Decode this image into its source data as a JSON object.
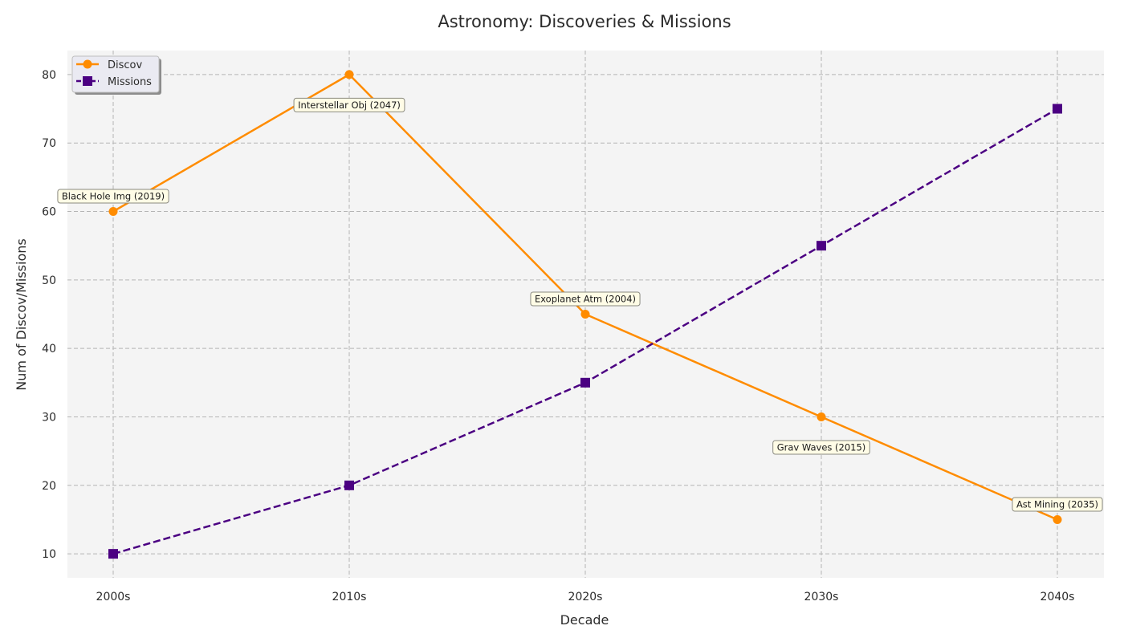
{
  "chart_data": {
    "type": "line",
    "title": "Astronomy: Discoveries & Missions",
    "xlabel": "Decade",
    "ylabel": "Num of Discov/Missions",
    "categories": [
      "2000s",
      "2010s",
      "2020s",
      "2030s",
      "2040s"
    ],
    "yticks": [
      10,
      20,
      30,
      40,
      50,
      60,
      70,
      80
    ],
    "ylim": [
      6.5,
      83.5
    ],
    "grid": true,
    "legend_position": "top-left",
    "series": [
      {
        "name": "Discov",
        "values": [
          60,
          80,
          45,
          30,
          15
        ],
        "color": "#FF8C00",
        "marker": "circle",
        "line_style": "solid"
      },
      {
        "name": "Missions",
        "values": [
          10,
          20,
          35,
          55,
          75
        ],
        "color": "#4B0082",
        "marker": "square",
        "line_style": "dashed"
      }
    ],
    "annotations": [
      {
        "text": "Black Hole Img (2019)",
        "category": "2000s",
        "value": 60,
        "side": "above"
      },
      {
        "text": "Interstellar Obj (2047)",
        "category": "2010s",
        "value": 80,
        "side": "below"
      },
      {
        "text": "Exoplanet Atm (2004)",
        "category": "2020s",
        "value": 45,
        "side": "above"
      },
      {
        "text": "Grav Waves (2015)",
        "category": "2030s",
        "value": 30,
        "side": "below"
      },
      {
        "text": "Ast Mining (2035)",
        "category": "2040s",
        "value": 15,
        "side": "above"
      }
    ],
    "colors": {
      "plot_background": "#F4F4F4",
      "grid": "#B5B5B5",
      "annotation_fill": "#FFFCE6",
      "annotation_border": "#8A8A80",
      "legend_fill": "#EAEAF2"
    }
  }
}
